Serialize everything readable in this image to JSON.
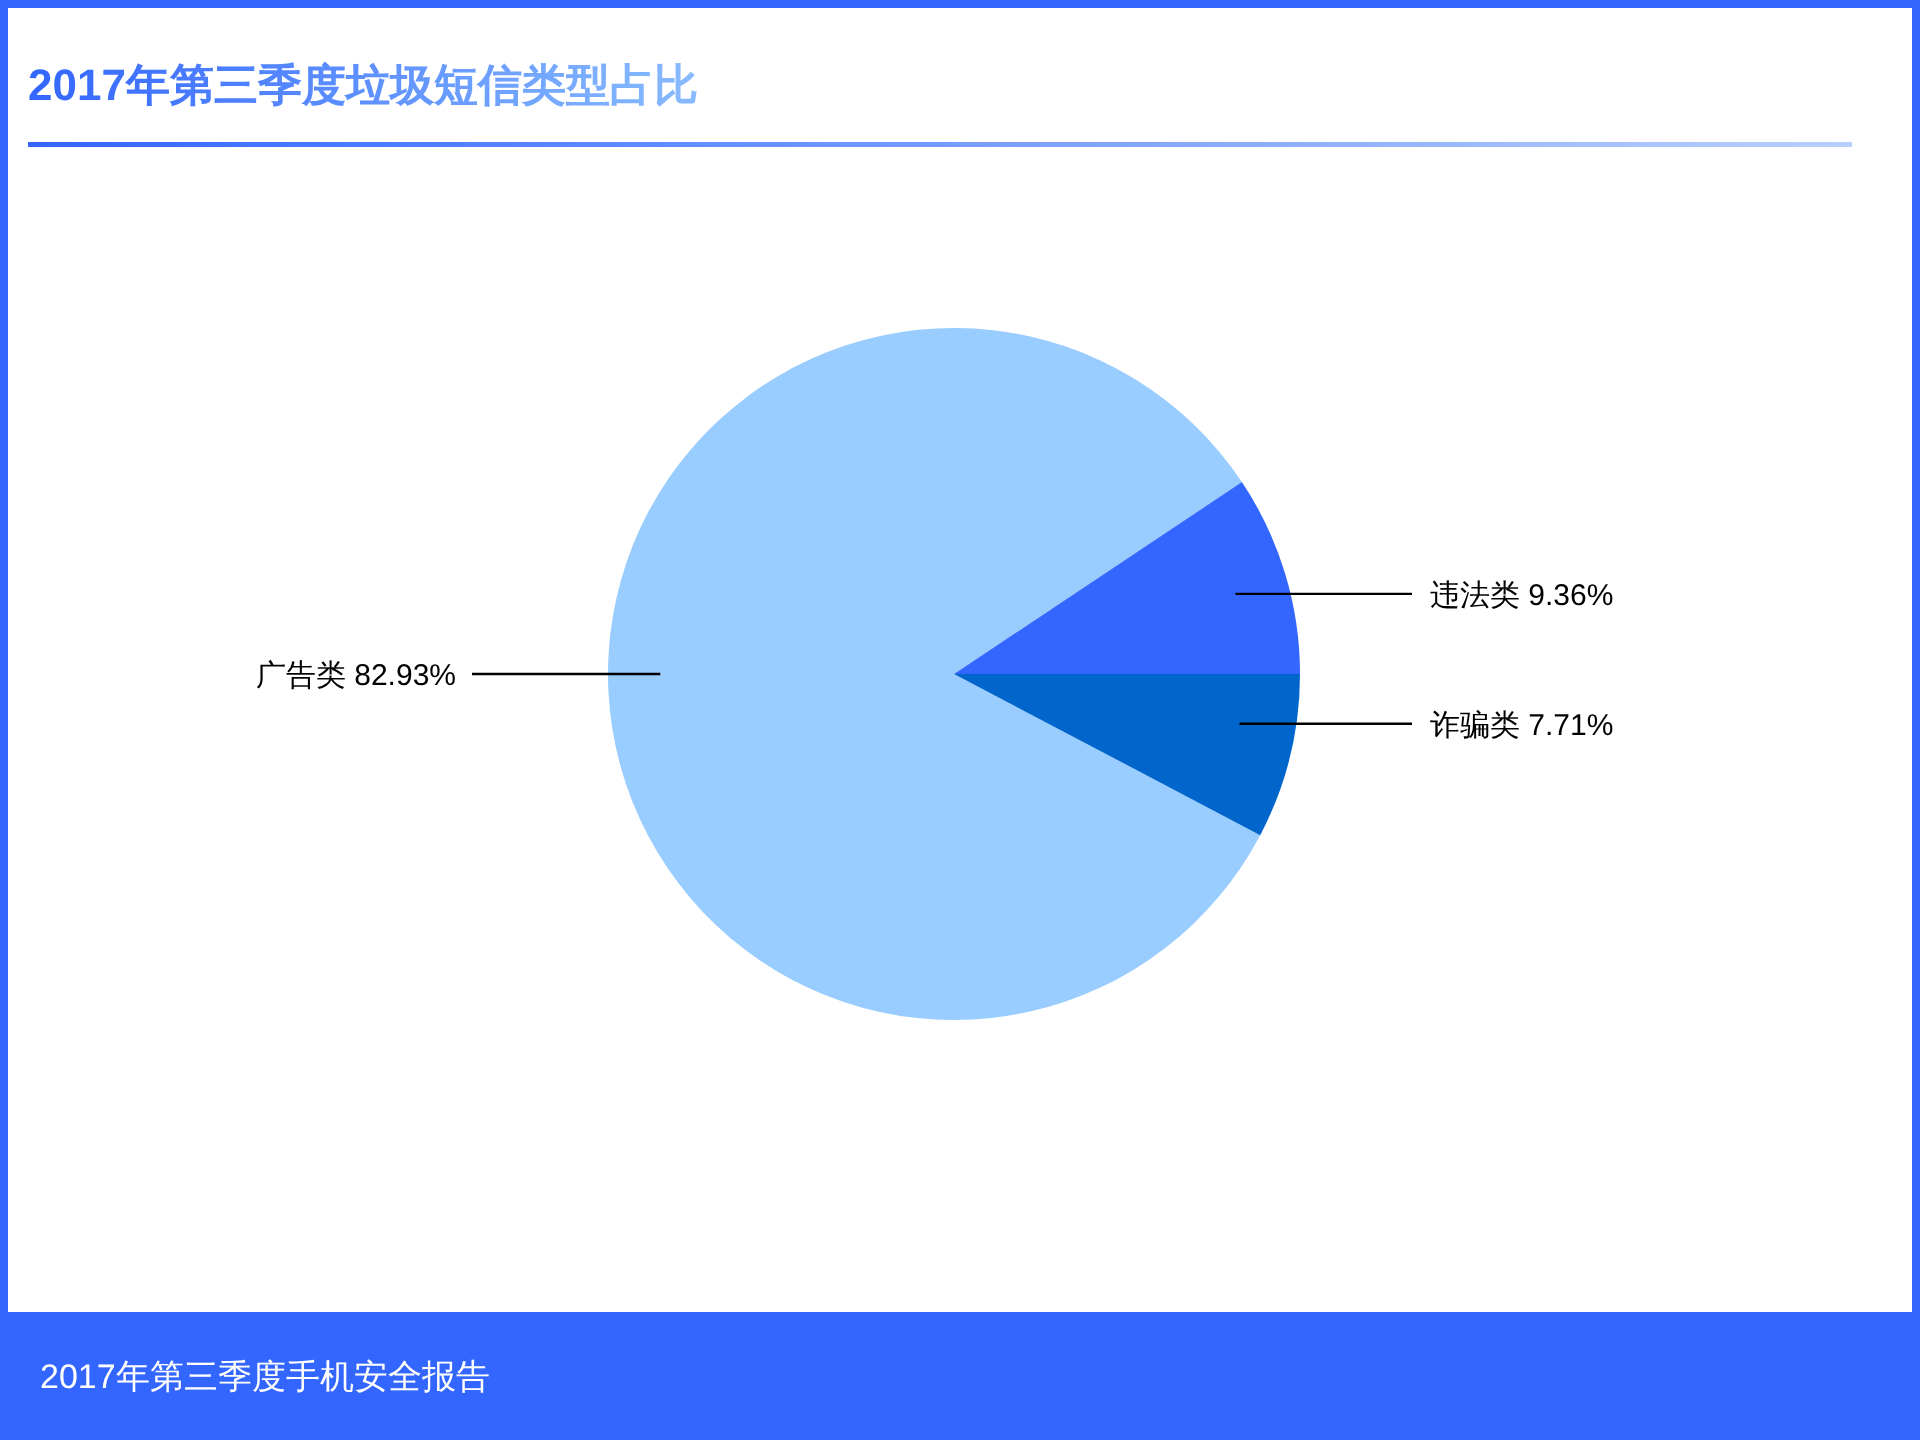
{
  "chart_data": {
    "type": "pie",
    "title": "2017年第三季度垃圾短信类型占比",
    "categories": [
      "广告类",
      "违法类",
      "诈骗类"
    ],
    "values": [
      82.93,
      9.36,
      7.71
    ],
    "value_labels": [
      "82.93%",
      "9.36%",
      "7.71%"
    ],
    "colors": [
      "#99ccff",
      "#3366ff",
      "#0066cc"
    ],
    "annotations": [
      "2017年第三季度手机安全报告"
    ]
  }
}
